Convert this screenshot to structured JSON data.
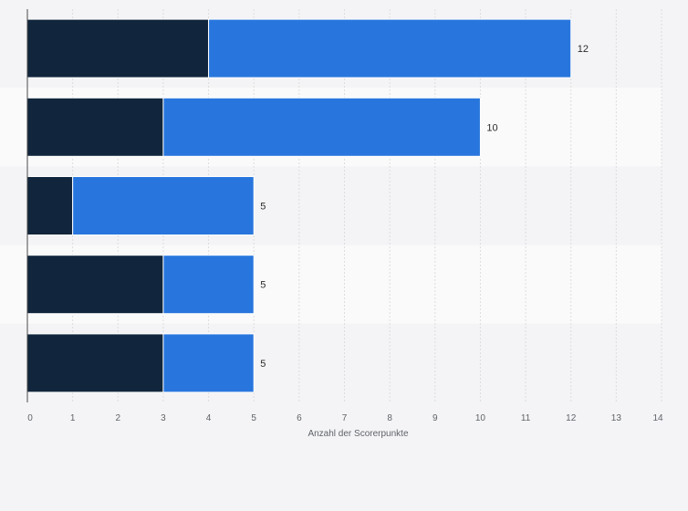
{
  "chart_data": {
    "type": "bar",
    "orientation": "horizontal",
    "stacked": true,
    "categories": [
      "",
      "",
      "",
      "",
      ""
    ],
    "series": [
      {
        "values": [
          4,
          3,
          1,
          3,
          3
        ],
        "color": "#11263c"
      },
      {
        "values": [
          8,
          7,
          4,
          2,
          2
        ],
        "color": "#2876dd"
      }
    ],
    "totals": [
      "12",
      "10",
      "5",
      "5",
      "5"
    ],
    "xlabel": "Anzahl der Scorerpunkte",
    "ylabel": "",
    "xlim": [
      0,
      14
    ],
    "xticks": [
      "0",
      "1",
      "2",
      "3",
      "4",
      "5",
      "6",
      "7",
      "8",
      "9",
      "10",
      "11",
      "12",
      "13",
      "14"
    ],
    "grid": "vertical",
    "legend": "none"
  },
  "colors": {
    "background": "#f4f4f6",
    "band_odd": "#f4f4f6",
    "band_even": "#fafafb",
    "grid": "#dddddd",
    "axis": "#4a4a4a"
  }
}
